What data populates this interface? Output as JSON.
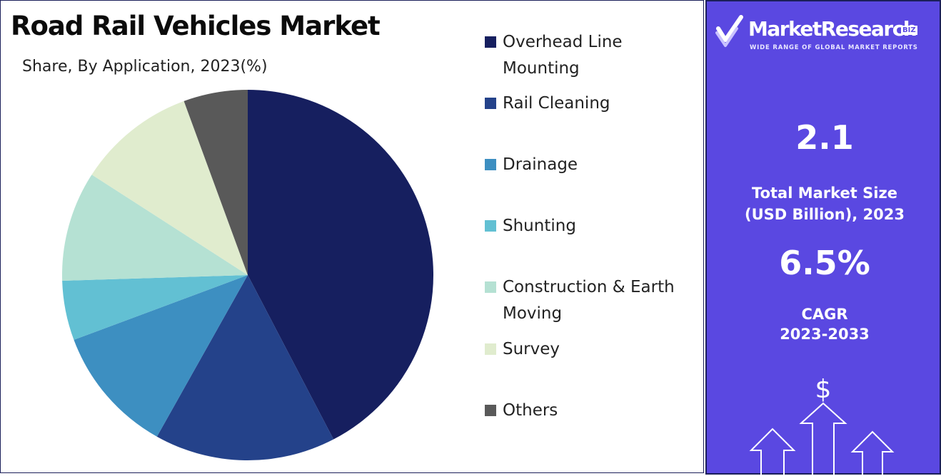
{
  "title": "Road Rail Vehicles Market",
  "subtitle": "Share, By Application, 2023(%)",
  "chart_data": {
    "type": "pie",
    "title": "Road Rail Vehicles Market",
    "subtitle": "Share, By Application, 2023(%)",
    "legend_position": "right",
    "slices": [
      {
        "label": "Overhead Line Mounting",
        "value": 43.2,
        "color": "#161f5f"
      },
      {
        "label": "Rail Cleaning",
        "value": 16.1,
        "color": "#24428a"
      },
      {
        "label": "Drainage",
        "value": 11.4,
        "color": "#3d8fc1"
      },
      {
        "label": "Shunting",
        "value": 5.3,
        "color": "#62c0d3"
      },
      {
        "label": "Construction & Earth Moving",
        "value": 9.8,
        "color": "#b5e1d3"
      },
      {
        "label": "Survey",
        "value": 10.5,
        "color": "#e0ecce"
      },
      {
        "label": "Others",
        "value": 5.7,
        "color": "#595959"
      }
    ]
  },
  "legend": [
    {
      "label": "Overhead Line Mounting",
      "color": "#161f5f"
    },
    {
      "label": "Rail Cleaning",
      "color": "#24428a"
    },
    {
      "label": "Drainage",
      "color": "#3d8fc1"
    },
    {
      "label": "Shunting",
      "color": "#62c0d3"
    },
    {
      "label": "Construction & Earth Moving",
      "color": "#b5e1d3"
    },
    {
      "label": "Survey",
      "color": "#e0ecce"
    },
    {
      "label": "Others",
      "color": "#595959"
    }
  ],
  "side_panel": {
    "background": "#5a48e1",
    "logo_text": "MarketResearch",
    "logo_biz": "BIZ",
    "logo_tagline": "WIDE RANGE OF GLOBAL MARKET REPORTS",
    "market_size_value": "2.1",
    "market_size_caption_line1": "Total Market Size",
    "market_size_caption_line2": "(USD Billion), 2023",
    "cagr_value": "6.5%",
    "cagr_caption_line1": "CAGR",
    "cagr_caption_line2": "2023-2033",
    "currency_symbol": "$",
    "icons": [
      "checkmark-logo-icon",
      "rising-arrows-icon"
    ]
  }
}
